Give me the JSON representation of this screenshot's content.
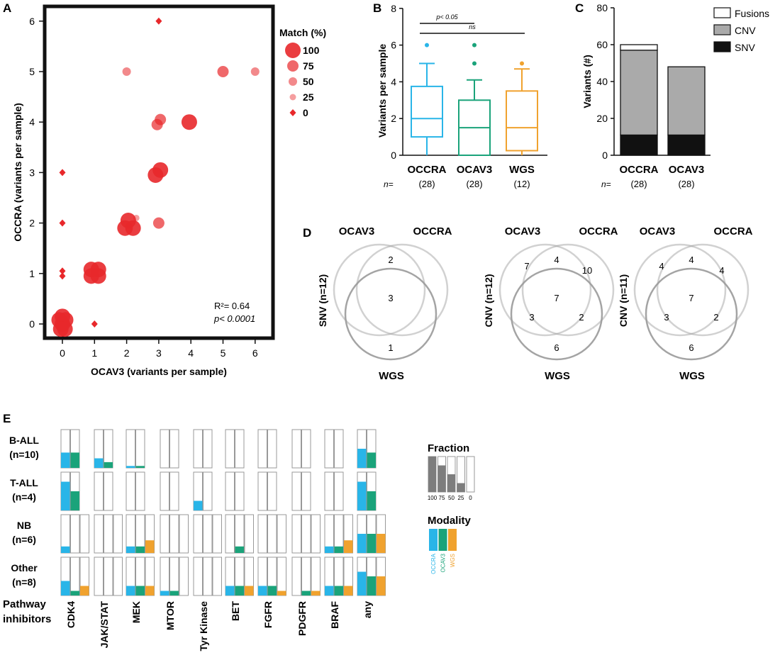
{
  "panel_labels": {
    "a": "A",
    "b": "B",
    "c": "C",
    "d": "D",
    "e": "E"
  },
  "colors": {
    "scatter": "#e8282b",
    "occra": "#29b5e8",
    "ocav3": "#1aa37a",
    "wgs": "#f0a22e",
    "gray_bar": "#aaaaaa",
    "black_bar": "#111111",
    "frame": "#999999",
    "venn": "#9a9a9a"
  },
  "chart_data": [
    {
      "id": "A",
      "type": "scatter",
      "xlabel": "OCAV3 (variants per sample)",
      "ylabel": "OCCRA (variants per sample)",
      "xlim": [
        -0.5,
        6.5
      ],
      "ylim": [
        -0.5,
        6.5
      ],
      "ticks": [
        "0",
        "1",
        "2",
        "3",
        "4",
        "5",
        "6"
      ],
      "legend_title": "Match (%)",
      "legend": [
        {
          "label": "100",
          "match": 100
        },
        {
          "label": "75",
          "match": 75
        },
        {
          "label": "50",
          "match": 50
        },
        {
          "label": "25",
          "match": 25
        },
        {
          "label": "0",
          "match": 0
        }
      ],
      "annotation_r2": "R²= 0.64",
      "annotation_p": "p< 0.0001",
      "points": [
        {
          "x": 0,
          "y": 0,
          "match": 100
        },
        {
          "x": -0.1,
          "y": 0.08,
          "match": 100
        },
        {
          "x": 0.1,
          "y": 0.08,
          "match": 100
        },
        {
          "x": 0,
          "y": 0.15,
          "match": 100
        },
        {
          "x": -0.05,
          "y": -0.1,
          "match": 100
        },
        {
          "x": 0.08,
          "y": -0.1,
          "match": 100
        },
        {
          "x": 0,
          "y": 1.05,
          "match": 0
        },
        {
          "x": 0,
          "y": 0.95,
          "match": 0
        },
        {
          "x": 0,
          "y": 2,
          "match": 0
        },
        {
          "x": 0,
          "y": 3,
          "match": 0
        },
        {
          "x": 1,
          "y": 0,
          "match": 0
        },
        {
          "x": 3,
          "y": 6,
          "match": 0
        },
        {
          "x": 0.9,
          "y": 1.08,
          "match": 100
        },
        {
          "x": 1.12,
          "y": 1.08,
          "match": 100
        },
        {
          "x": 0.9,
          "y": 0.95,
          "match": 100
        },
        {
          "x": 1.12,
          "y": 0.95,
          "match": 100
        },
        {
          "x": 1.95,
          "y": 1.9,
          "match": 100
        },
        {
          "x": 2.2,
          "y": 1.9,
          "match": 100
        },
        {
          "x": 2.05,
          "y": 2.05,
          "match": 100
        },
        {
          "x": 2.3,
          "y": 2.1,
          "match": 25
        },
        {
          "x": 3,
          "y": 2,
          "match": 75
        },
        {
          "x": 2.9,
          "y": 2.95,
          "match": 100
        },
        {
          "x": 3.05,
          "y": 3.05,
          "match": 100
        },
        {
          "x": 2.95,
          "y": 3.95,
          "match": 75
        },
        {
          "x": 3.05,
          "y": 4.05,
          "match": 75
        },
        {
          "x": 3.95,
          "y": 4,
          "match": 100
        },
        {
          "x": 2,
          "y": 5,
          "match": 50
        },
        {
          "x": 5,
          "y": 5,
          "match": 75
        },
        {
          "x": 6,
          "y": 5,
          "match": 50
        }
      ]
    },
    {
      "id": "B",
      "type": "box",
      "ylabel": "Variants per sample",
      "ylim": [
        0,
        8
      ],
      "yticks": [
        "0",
        "2",
        "4",
        "6",
        "8"
      ],
      "n_label": "n=",
      "groups": [
        {
          "name": "OCCRA",
          "n": "(28)",
          "min": 0,
          "q1": 1,
          "median": 2,
          "q3": 3.75,
          "max": 5,
          "outliers": [
            6
          ]
        },
        {
          "name": "OCAV3",
          "n": "(28)",
          "min": 0,
          "q1": 0,
          "median": 1.5,
          "q3": 3,
          "max": 4.1,
          "outliers": [
            5,
            6
          ]
        },
        {
          "name": "WGS",
          "n": "(12)",
          "min": 0,
          "q1": 0.25,
          "median": 1.5,
          "q3": 3.5,
          "max": 4.7,
          "outliers": [
            5
          ]
        }
      ],
      "brackets": [
        {
          "label": "p< 0.05",
          "level": 7.3
        },
        {
          "label": "ns",
          "level": 6.8
        }
      ]
    },
    {
      "id": "C",
      "type": "stacked_bar",
      "ylabel": "Variants (#)",
      "ylim": [
        0,
        80
      ],
      "yticks": [
        "0",
        "20",
        "40",
        "60",
        "80"
      ],
      "n_label": "n=",
      "categories": [
        "OCCRA",
        "OCAV3"
      ],
      "n_values": [
        "(28)",
        "(28)"
      ],
      "series": [
        {
          "name": "SNV",
          "values": [
            11,
            11
          ]
        },
        {
          "name": "CNV",
          "values": [
            46,
            37
          ]
        },
        {
          "name": "Fusions",
          "values": [
            3,
            0
          ]
        }
      ]
    },
    {
      "id": "D",
      "type": "venn",
      "sets": [
        "OCAV3",
        "OCCRA",
        "WGS"
      ],
      "diagrams": [
        {
          "row_label": "SNV (n=12)",
          "ocav3_only": "",
          "occra_only": "",
          "pair_top": "2",
          "center": "3",
          "pair_left": "",
          "pair_right": "",
          "wgs_only": "1"
        },
        {
          "row_label": "CNV (n=12)",
          "ocav3_only": "7",
          "occra_only": "10",
          "pair_top": "4",
          "center": "7",
          "pair_left": "3",
          "pair_right": "2",
          "wgs_only": "6"
        },
        {
          "row_label": "CNV (n=11)",
          "ocav3_only": "4",
          "occra_only": "4",
          "pair_top": "4",
          "center": "7",
          "pair_left": "3",
          "pair_right": "2",
          "wgs_only": "6"
        }
      ]
    },
    {
      "id": "E",
      "type": "bar_matrix",
      "row_footer_1": "Pathway",
      "row_footer_2": "inhibitors",
      "pathways": [
        "CDK4",
        "JAK/STAT",
        "MEK",
        "MTOR",
        "Tyr Kinase",
        "BET",
        "FGFR",
        "PDGFR",
        "BRAF",
        "any"
      ],
      "rows": [
        {
          "name": "B-ALL",
          "n": "(n=10)",
          "modalities": 2,
          "values": [
            [
              0.4,
              0.4
            ],
            [
              0.25,
              0.15
            ],
            [
              0.05,
              0.05
            ],
            [
              0,
              0
            ],
            [
              0,
              0
            ],
            [
              0,
              0
            ],
            [
              0,
              0
            ],
            [
              0,
              0
            ],
            [
              0,
              0
            ],
            [
              0.5,
              0.4
            ]
          ]
        },
        {
          "name": "T-ALL",
          "n": "(n=4)",
          "modalities": 2,
          "values": [
            [
              0.75,
              0.5
            ],
            [
              0,
              0
            ],
            [
              0,
              0
            ],
            [
              0,
              0
            ],
            [
              0.25,
              0
            ],
            [
              0,
              0
            ],
            [
              0,
              0
            ],
            [
              0,
              0
            ],
            [
              0,
              0
            ],
            [
              0.75,
              0.5
            ]
          ]
        },
        {
          "name": "NB",
          "n": "(n=6)",
          "modalities": 3,
          "values": [
            [
              0.17,
              0,
              0
            ],
            [
              0,
              0,
              0
            ],
            [
              0.17,
              0.17,
              0.33
            ],
            [
              0,
              0,
              0
            ],
            [
              0,
              0,
              0
            ],
            [
              0,
              0.17,
              0
            ],
            [
              0,
              0,
              0
            ],
            [
              0,
              0,
              0
            ],
            [
              0.17,
              0.17,
              0.33
            ],
            [
              0.5,
              0.5,
              0.5
            ]
          ]
        },
        {
          "name": "Other",
          "n": "(n=8)",
          "modalities": 3,
          "values": [
            [
              0.38,
              0.12,
              0.25
            ],
            [
              0,
              0,
              0
            ],
            [
              0.25,
              0.25,
              0.25
            ],
            [
              0.12,
              0.12,
              0
            ],
            [
              0,
              0,
              0
            ],
            [
              0.25,
              0.25,
              0.25
            ],
            [
              0.25,
              0.25,
              0.12
            ],
            [
              0,
              0.12,
              0.12
            ],
            [
              0.25,
              0.25,
              0.25
            ],
            [
              0.62,
              0.5,
              0.5
            ]
          ]
        }
      ],
      "fraction_legend": {
        "title": "Fraction",
        "levels": [
          1,
          0.75,
          0.5,
          0.25,
          0
        ],
        "labels": [
          "100",
          "75",
          "50",
          "25",
          "0"
        ]
      },
      "modality_legend": {
        "title": "Modality",
        "labels": [
          "OCCRA",
          "OCAV3",
          "WGS"
        ]
      }
    }
  ]
}
